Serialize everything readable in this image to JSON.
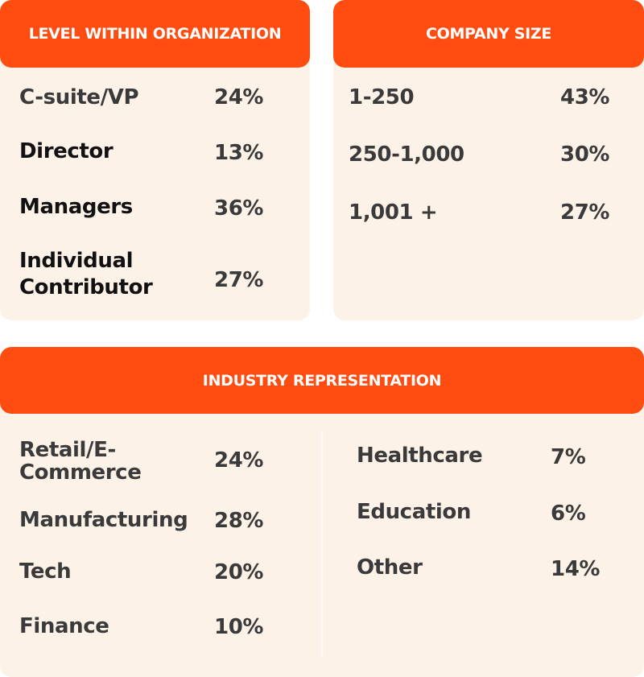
{
  "level": {
    "title": "LEVEL WITHIN ORGANIZATION",
    "rows": [
      {
        "label": "C-suite/VP",
        "value": "24%"
      },
      {
        "label": "Director",
        "value": "13%"
      },
      {
        "label": "Managers",
        "value": "36%"
      },
      {
        "label_line1": "Individual",
        "label_line2": "Contributor",
        "value": "27%"
      }
    ]
  },
  "company_size": {
    "title": "COMPANY SIZE",
    "rows": [
      {
        "label": "1-250",
        "value": "43%"
      },
      {
        "label": "250-1,000",
        "value": "30%"
      },
      {
        "label": "1,001 +",
        "value": "27%"
      }
    ]
  },
  "industry": {
    "title": "INDUSTRY REPRESENTATION",
    "left": [
      {
        "label_line1": "Retail/E-",
        "label_line2": "Commerce",
        "value": "24%"
      },
      {
        "label": "Manufacturing",
        "value": "28%"
      },
      {
        "label": "Tech",
        "value": "20%"
      },
      {
        "label": "Finance",
        "value": "10%"
      }
    ],
    "right": [
      {
        "label": "Healthcare",
        "value": "7%"
      },
      {
        "label": "Education",
        "value": "6%"
      },
      {
        "label": "Other",
        "value": "14%"
      }
    ]
  },
  "colors": {
    "header": "#ff4d12",
    "card": "#fdf2e7",
    "text": "#111111"
  }
}
